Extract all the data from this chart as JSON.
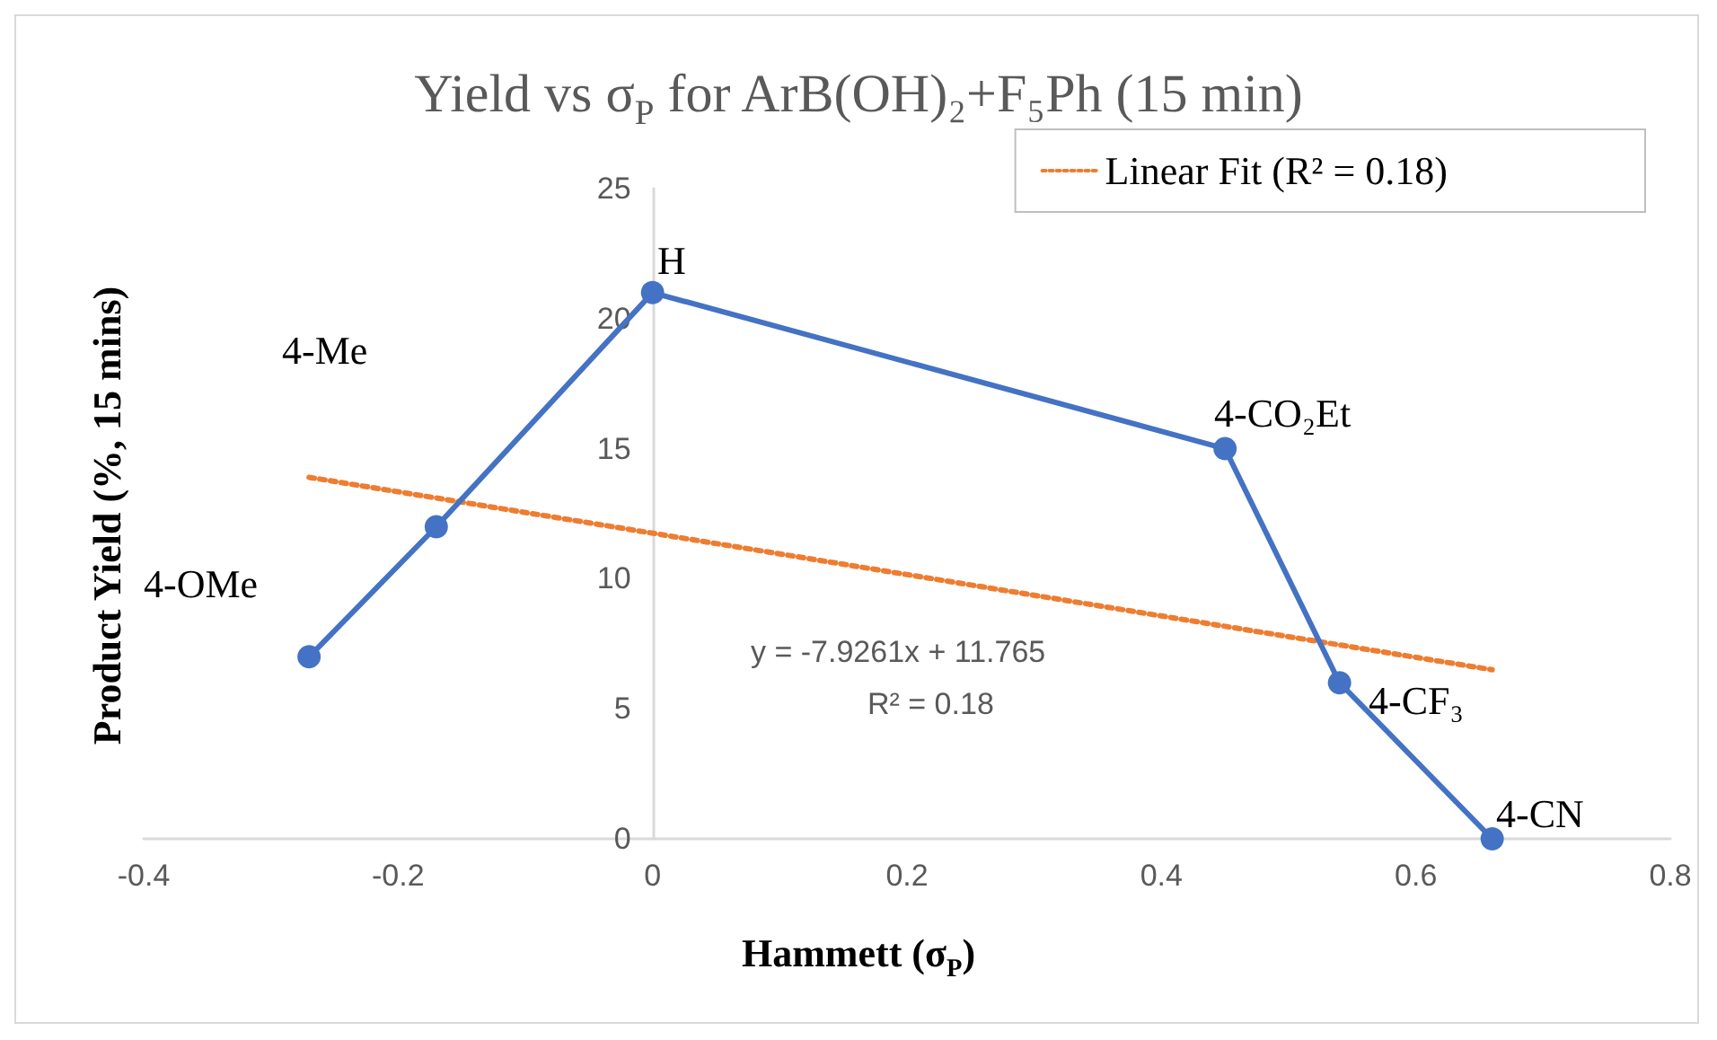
{
  "chart_data": {
    "type": "line",
    "title": "Yield vs σ$_{P}$ for ArB(OH)₂+F₅Ph (15 min)",
    "xlabel": "Hammett (σ$_{P}$)",
    "ylabel": "Product Yield (%, 15 mins)",
    "xlim": [
      -0.4,
      0.8
    ],
    "xticks": [
      -0.4,
      -0.2,
      0,
      0.2,
      0.4,
      0.6,
      0.8
    ],
    "ylim": [
      0,
      25
    ],
    "yticks": [
      0,
      5,
      10,
      15,
      20,
      25
    ],
    "legend": "top right",
    "series": [
      {
        "color": "#4472c4",
        "x": [
          -0.27,
          -0.17,
          0,
          0.45,
          0.54,
          0.66
        ],
        "values": [
          7,
          12,
          21,
          15,
          6,
          0
        ],
        "marker": "circle",
        "line_style": "solid"
      },
      {
        "name": "Linear Fit (R² = 0.18)",
        "color": "#ed7d31",
        "x": [
          -0.27,
          0.66
        ],
        "values": [
          13.9,
          6.5
        ],
        "marker": "none",
        "line_style": "dotted"
      }
    ],
    "annotations": [
      "H",
      "4-Me",
      "4-OMe",
      "4-CO₂Et",
      "4-CF₃",
      "4-CN",
      "y = -7.9261x + 11.765",
      "R² = 0.18"
    ]
  }
}
